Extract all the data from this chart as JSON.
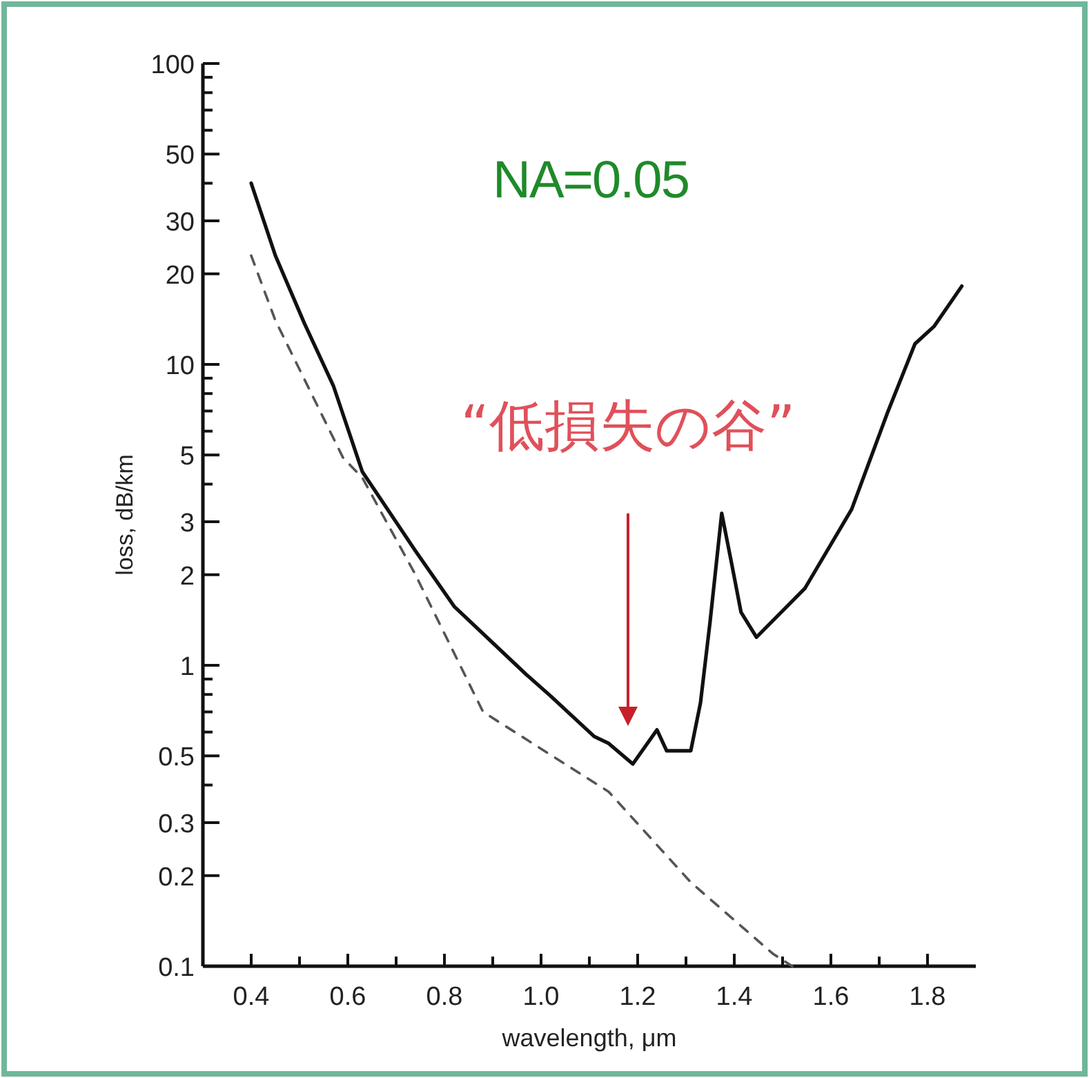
{
  "chart_data": {
    "type": "line",
    "title": "NA=0.05",
    "xlabel": "wavelength, μm",
    "ylabel": "loss, dB/km",
    "log": "y",
    "grid": false,
    "marker": "none",
    "xlim": [
      0.3,
      1.9
    ],
    "ylim": [
      0.1,
      100
    ],
    "xticks": [
      0.4,
      {
        "value": 0.5,
        "label": null
      },
      0.6,
      {
        "value": 0.7,
        "label": null
      },
      0.8,
      {
        "value": 0.9,
        "label": null
      },
      {
        "value": 1.0,
        "label": "1.0"
      },
      {
        "value": 1.1,
        "label": null
      },
      1.2,
      {
        "value": 1.3,
        "label": null
      },
      1.4,
      {
        "value": 1.5,
        "label": null
      },
      1.6,
      {
        "value": 1.7,
        "label": null
      },
      1.8
    ],
    "yticks": [
      100,
      {
        "value": 90,
        "label": null
      },
      {
        "value": 80,
        "label": null
      },
      {
        "value": 70,
        "label": null
      },
      {
        "value": 60,
        "label": null
      },
      50,
      {
        "value": 40,
        "label": null
      },
      30,
      20,
      10,
      {
        "value": 9,
        "label": null
      },
      {
        "value": 8,
        "label": null
      },
      {
        "value": 7,
        "label": null
      },
      {
        "value": 6,
        "label": null
      },
      5,
      {
        "value": 4,
        "label": null
      },
      3,
      2,
      1,
      {
        "value": 0.9,
        "label": null
      },
      {
        "value": 0.8,
        "label": null
      },
      {
        "value": 0.7,
        "label": null
      },
      {
        "value": 0.6,
        "label": null
      },
      0.5,
      {
        "value": 0.4,
        "label": null
      },
      0.3,
      0.2,
      0.1
    ],
    "series": [
      {
        "color": "#111111",
        "line_style": "solid",
        "x": [
          0.4,
          0.45,
          0.51,
          0.57,
          0.63,
          0.74,
          0.82,
          0.97,
          1.02,
          1.11,
          1.14,
          1.19,
          1.24,
          1.26,
          1.31,
          1.33,
          1.35,
          1.374,
          1.394,
          1.414,
          1.446,
          1.546,
          1.643,
          1.717,
          1.774,
          1.814,
          1.871
        ],
        "values": [
          40,
          23,
          13.7,
          8.5,
          4.4,
          2.4,
          1.57,
          0.93,
          0.79,
          0.58,
          0.55,
          0.47,
          0.61,
          0.52,
          0.52,
          0.75,
          1.4,
          3.2,
          2.2,
          1.5,
          1.24,
          1.8,
          3.3,
          6.9,
          11.7,
          13.4,
          18.2
        ]
      },
      {
        "color": "#555555",
        "line_style": "dashed",
        "x": [
          0.4,
          0.45,
          0.59,
          0.63,
          0.74,
          0.88,
          1.14,
          1.31,
          1.48,
          1.52
        ],
        "values": [
          23,
          14,
          4.9,
          4.2,
          2.0,
          0.7,
          0.38,
          0.19,
          0.11,
          0.1
        ]
      }
    ],
    "annotations": [
      "“低損失の谷”"
    ]
  }
}
